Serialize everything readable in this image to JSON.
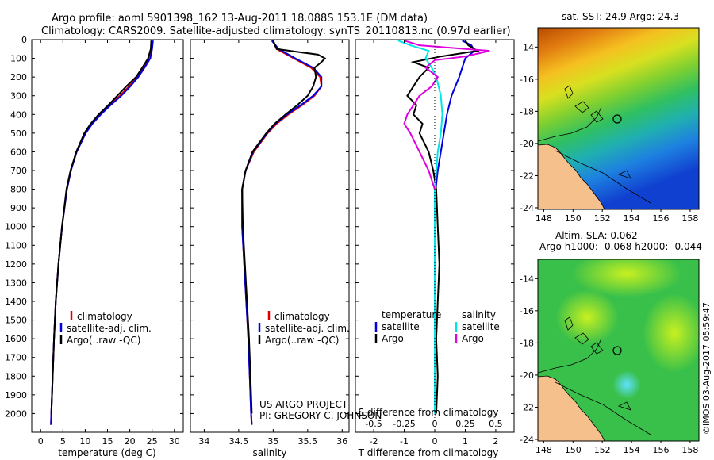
{
  "header": {
    "title_line1": "Argo profile: aoml 5901398_162 13-Aug-2011 18.088S 153.1E (DM data)",
    "title_line2": "Climatology: CARS2009. Satellite-adjusted climatology: synTS_20110813.nc (0.97d earlier)"
  },
  "footer": {
    "project_line1": "US ARGO PROJECT",
    "project_line2": "PI: GREGORY C. JOHNSON",
    "imos_stamp": "©IMOS 03-Aug-2017 05:59:47"
  },
  "colors": {
    "climatology": "#e00000",
    "satellite": "#0000e0",
    "argo": "#000000",
    "salinity_sat": "#00e5e5",
    "salinity_argo": "#e000e0",
    "land": "#f5c08c"
  },
  "chart_data": [
    {
      "id": "temperature",
      "type": "line",
      "xlabel": "temperature (deg C)",
      "ylabel": "",
      "xlim": [
        -2,
        32
      ],
      "ylim": [
        0,
        2100
      ],
      "xticks": [
        0,
        5,
        10,
        15,
        20,
        25,
        30
      ],
      "yticks": [
        0,
        100,
        200,
        300,
        400,
        500,
        600,
        700,
        800,
        900,
        1000,
        1100,
        1200,
        1300,
        1400,
        1500,
        1600,
        1700,
        1800,
        1900,
        2000
      ],
      "legend": [
        "climatology",
        "satellite-adj. clim.",
        "Argo(..raw -QC)"
      ],
      "series": [
        {
          "name": "climatology",
          "color": "#e00000",
          "depth": [
            5,
            50,
            100,
            150,
            200,
            250,
            300,
            350,
            400,
            450,
            500,
            600,
            700,
            800,
            1000,
            1200,
            1400,
            1600,
            1800,
            2000,
            2060
          ],
          "values": [
            24.9,
            24.8,
            24.2,
            23.0,
            21.6,
            19.8,
            17.8,
            15.4,
            13.3,
            11.5,
            10.0,
            8.0,
            6.8,
            5.9,
            4.8,
            4.0,
            3.4,
            3.0,
            2.7,
            2.4,
            2.3
          ]
        },
        {
          "name": "satellite-adj. clim.",
          "color": "#0000e0",
          "depth": [
            5,
            50,
            100,
            150,
            200,
            250,
            300,
            350,
            400,
            450,
            500,
            600,
            700,
            800,
            1000,
            1200,
            1400,
            1600,
            1800,
            2000,
            2060
          ],
          "values": [
            25.2,
            25.0,
            24.6,
            23.3,
            21.9,
            20.1,
            18.1,
            15.7,
            13.5,
            11.6,
            10.1,
            8.1,
            6.8,
            5.9,
            4.8,
            4.0,
            3.4,
            3.0,
            2.7,
            2.4,
            2.3
          ]
        },
        {
          "name": "Argo(..raw -QC)",
          "color": "#000000",
          "depth": [
            5,
            50,
            100,
            150,
            200,
            250,
            300,
            350,
            400,
            450,
            500,
            600,
            700,
            800,
            1000,
            1200,
            1400,
            1600,
            1800,
            2000
          ],
          "values": [
            24.8,
            24.7,
            24.1,
            22.8,
            21.4,
            19.2,
            17.2,
            15.2,
            13.0,
            11.2,
            9.8,
            8.0,
            6.7,
            5.8,
            4.8,
            4.0,
            3.4,
            3.0,
            2.7,
            2.4
          ]
        }
      ]
    },
    {
      "id": "salinity",
      "type": "line",
      "xlabel": "salinity",
      "ylabel": "",
      "xlim": [
        33.8,
        36.1
      ],
      "ylim": [
        0,
        2100
      ],
      "xticks": [
        34,
        34.5,
        35,
        35.5,
        36
      ],
      "xtick_labels": [
        "34",
        "34.5",
        "35",
        "35.5",
        "36"
      ],
      "legend": [
        "climatology",
        "satellite-adj. clim.",
        "Argo(..raw -QC)"
      ],
      "series": [
        {
          "name": "climatology",
          "color": "#e00000",
          "depth": [
            5,
            50,
            100,
            150,
            200,
            250,
            300,
            350,
            400,
            450,
            500,
            600,
            700,
            800,
            1000,
            1200,
            1400,
            1600,
            1800,
            2000,
            2060
          ],
          "values": [
            35.0,
            35.05,
            35.3,
            35.55,
            35.68,
            35.7,
            35.6,
            35.42,
            35.22,
            35.05,
            34.92,
            34.72,
            34.6,
            34.55,
            34.55,
            34.58,
            34.61,
            34.64,
            34.66,
            34.68,
            34.69
          ]
        },
        {
          "name": "satellite-adj. clim.",
          "color": "#0000e0",
          "depth": [
            5,
            50,
            100,
            150,
            200,
            250,
            300,
            350,
            400,
            450,
            500,
            600,
            700,
            800,
            1000,
            1200,
            1400,
            1600,
            1800,
            2000,
            2060
          ],
          "values": [
            34.98,
            35.08,
            35.32,
            35.58,
            35.7,
            35.7,
            35.58,
            35.4,
            35.2,
            35.03,
            34.91,
            34.71,
            34.6,
            34.55,
            34.55,
            34.58,
            34.61,
            34.64,
            34.66,
            34.68,
            34.69
          ]
        },
        {
          "name": "Argo(..raw -QC)",
          "color": "#000000",
          "depth": [
            5,
            50,
            80,
            100,
            120,
            150,
            200,
            250,
            300,
            350,
            400,
            450,
            500,
            600,
            700,
            800,
            1000,
            1200,
            1400,
            1600,
            1800,
            2000
          ],
          "values": [
            35.0,
            35.05,
            35.65,
            35.75,
            35.7,
            35.6,
            35.62,
            35.58,
            35.5,
            35.35,
            35.18,
            35.02,
            34.9,
            34.7,
            34.6,
            34.55,
            34.56,
            34.59,
            34.62,
            34.65,
            34.67,
            34.69
          ]
        }
      ]
    },
    {
      "id": "differences",
      "type": "line",
      "xlabel": "T difference from climatology",
      "xlabel_top": "S difference from climatology",
      "xlim": [
        -2.6,
        2.6
      ],
      "ylim": [
        0,
        2100
      ],
      "xticks": [
        -2,
        -1,
        0,
        1,
        2
      ],
      "xtick_labels": [
        "-2",
        "-1",
        "0",
        "1",
        "2"
      ],
      "sticks": [
        -2,
        -1,
        0,
        1,
        2
      ],
      "stick_labels": [
        "-0.5",
        "-0.25",
        "0",
        "0.25",
        "0.5"
      ],
      "legend_title_left": "temperature",
      "legend_title_right": "salinity",
      "legend": [
        "satellite",
        "Argo",
        "satellite",
        "Argo"
      ],
      "series": [
        {
          "name": "T satellite",
          "color": "#0000e0",
          "depth": [
            5,
            30,
            60,
            100,
            150,
            200,
            300,
            400,
            500,
            600,
            700,
            800,
            1000,
            1200,
            1400,
            1600,
            1800,
            2000
          ],
          "values": [
            0.9,
            1.2,
            1.3,
            1.0,
            0.9,
            0.8,
            0.55,
            0.4,
            0.3,
            0.2,
            0.1,
            0.03,
            0,
            0,
            0,
            0,
            0,
            0
          ]
        },
        {
          "name": "T Argo",
          "color": "#000000",
          "depth": [
            5,
            30,
            60,
            90,
            120,
            150,
            200,
            250,
            300,
            350,
            400,
            450,
            500,
            600,
            700,
            800,
            1000,
            1200,
            1400,
            1600,
            1800,
            2000
          ],
          "values": [
            1.0,
            1.1,
            1.4,
            0.2,
            -0.7,
            -0.2,
            -0.5,
            -0.7,
            -0.9,
            -0.6,
            -0.7,
            -0.4,
            -0.5,
            -0.2,
            -0.05,
            0.05,
            0.1,
            0.15,
            0.1,
            0.05,
            0.1,
            0.05
          ]
        },
        {
          "name": "S satellite",
          "color": "#00e5e5",
          "depth": [
            5,
            30,
            60,
            100,
            150,
            200,
            300,
            400,
            500,
            600,
            700,
            800,
            1000,
            1200,
            1400,
            1600,
            1800,
            2000
          ],
          "values": [
            -1.2,
            -0.8,
            -0.2,
            -0.3,
            -0.1,
            0.05,
            0.2,
            0.25,
            0.2,
            0.1,
            0.05,
            0,
            0,
            0,
            0,
            0,
            0,
            0
          ]
        },
        {
          "name": "S Argo",
          "color": "#e000e0",
          "depth": [
            5,
            30,
            60,
            90,
            110,
            150,
            200,
            250,
            300,
            350,
            400,
            450,
            500,
            600,
            700,
            800
          ],
          "values": [
            -1.0,
            -0.5,
            1.8,
            1.0,
            0.0,
            -0.3,
            0.1,
            -0.1,
            -0.5,
            -0.7,
            -0.9,
            -1.0,
            -0.8,
            -0.5,
            -0.2,
            0.0
          ]
        }
      ]
    },
    {
      "id": "sst_map",
      "type": "heatmap",
      "title": "sat. SST: 24.9 Argo: 24.3",
      "xticks": [
        148,
        150,
        152,
        154,
        156,
        158
      ],
      "yticks": [
        -14,
        -16,
        -18,
        -20,
        -22,
        -24
      ],
      "xlim": [
        147.6,
        158.6
      ],
      "ylim": [
        -24.1,
        -12.8
      ],
      "float_lon": 153.1,
      "float_lat": -18.088
    },
    {
      "id": "sla_map",
      "type": "heatmap",
      "title": "Altim. SLA: 0.062",
      "subtitle": "Argo h1000: -0.068 h2000: -0.044",
      "xticks": [
        148,
        150,
        152,
        154,
        156,
        158
      ],
      "yticks": [
        -14,
        -16,
        -18,
        -20,
        -22,
        -24
      ],
      "xlim": [
        147.6,
        158.6
      ],
      "ylim": [
        -24.1,
        -12.8
      ],
      "float_lon": 153.1,
      "float_lat": -18.088
    }
  ]
}
